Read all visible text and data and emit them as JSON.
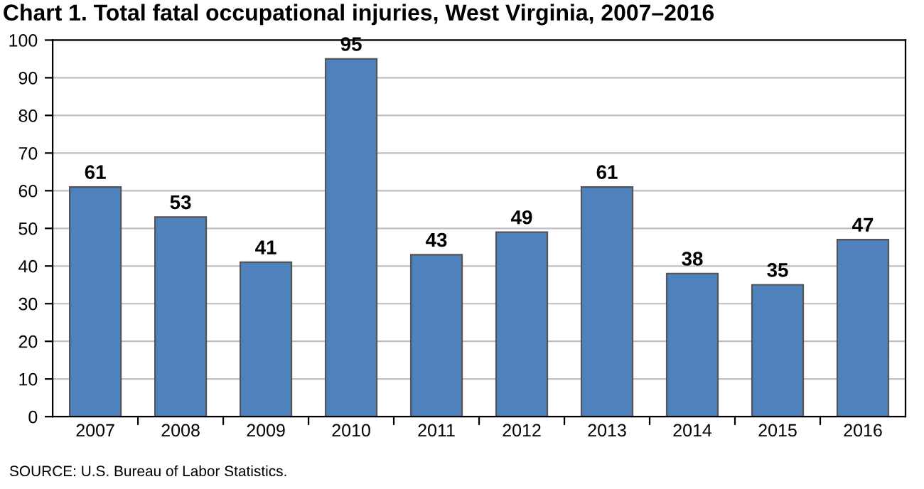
{
  "chart_data": {
    "type": "bar",
    "title": "Chart 1. Total fatal occupational injuries, West Virginia, 2007–2016",
    "categories": [
      "2007",
      "2008",
      "2009",
      "2010",
      "2011",
      "2012",
      "2013",
      "2014",
      "2015",
      "2016"
    ],
    "values": [
      61,
      53,
      41,
      95,
      43,
      49,
      61,
      38,
      35,
      47
    ],
    "color": "#4f81bd",
    "ylim": [
      0,
      100
    ],
    "yticks": [
      0,
      10,
      20,
      30,
      40,
      50,
      60,
      70,
      80,
      90,
      100
    ],
    "data_labels": true,
    "grid": "y",
    "annotations": [
      "SOURCE: U.S. Bureau of Labor Statistics."
    ]
  }
}
